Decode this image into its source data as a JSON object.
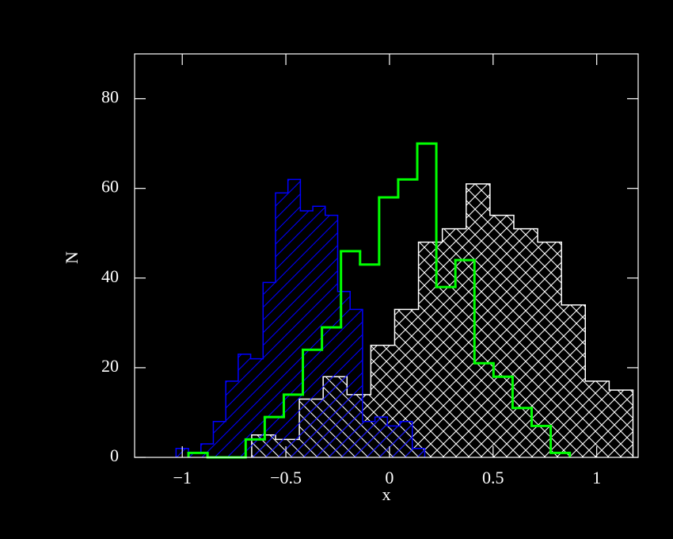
{
  "chart_data": {
    "type": "histogram",
    "x_label": "x",
    "y_label": "N",
    "xlim": [
      -1.23,
      1.2
    ],
    "ylim": [
      0,
      90
    ],
    "xticks": [
      {
        "value": -1,
        "label": "−1"
      },
      {
        "value": -0.5,
        "label": "−0.5"
      },
      0,
      0.5,
      1
    ],
    "yticks": [
      0,
      20,
      40,
      60,
      80
    ],
    "series": [
      {
        "color": "#ffffff",
        "hatch": "x",
        "bins": [
          -0.665,
          -0.55,
          -0.435,
          -0.32,
          -0.205,
          -0.09,
          0.025,
          0.14,
          0.255,
          0.37,
          0.485,
          0.6,
          0.715,
          0.83,
          0.945,
          1.06,
          1.175
        ],
        "values": [
          5,
          4,
          13,
          18,
          14,
          25,
          33,
          48,
          51,
          61,
          54,
          51,
          48,
          34,
          17,
          15
        ]
      },
      {
        "color": "#0000ff",
        "hatch": "/",
        "bins": [
          -1.03,
          -0.97,
          -0.91,
          -0.85,
          -0.79,
          -0.73,
          -0.67,
          -0.61,
          -0.55,
          -0.49,
          -0.43,
          -0.37,
          -0.31,
          -0.25,
          -0.19,
          -0.13,
          -0.07,
          -0.01,
          0.05,
          0.11,
          0.17
        ],
        "values": [
          2,
          1,
          3,
          8,
          17,
          23,
          22,
          39,
          59,
          62,
          55,
          56,
          54,
          37,
          33,
          8,
          9,
          7,
          8,
          2
        ]
      },
      {
        "color": "#00ff00",
        "hatch": "none",
        "bins": [
          -0.97,
          -0.878,
          -0.786,
          -0.694,
          -0.602,
          -0.51,
          -0.418,
          -0.326,
          -0.234,
          -0.142,
          -0.05,
          0.042,
          0.134,
          0.226,
          0.318,
          0.41,
          0.502,
          0.594,
          0.686,
          0.778,
          0.87
        ],
        "values": [
          1,
          0,
          0,
          4,
          9,
          14,
          24,
          29,
          46,
          43,
          58,
          62,
          70,
          38,
          44,
          21,
          18,
          11,
          7,
          1
        ]
      }
    ]
  }
}
